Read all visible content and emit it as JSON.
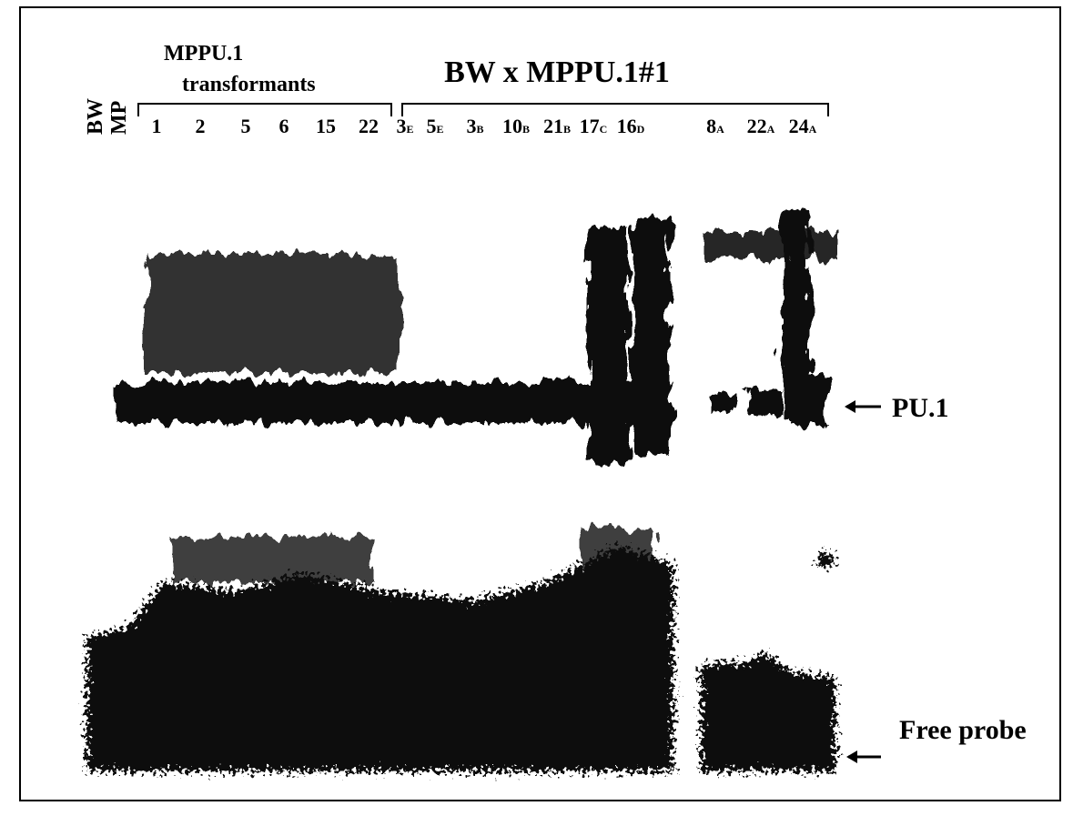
{
  "figure": {
    "group_left": {
      "title": "MPPU.1",
      "subtitle": "transformants"
    },
    "group_right": {
      "title": "BW x MPPU.1#1"
    },
    "controls": [
      "BW",
      "MP"
    ],
    "lanes": [
      {
        "label": "1"
      },
      {
        "label": "2"
      },
      {
        "label": "5"
      },
      {
        "label": "6"
      },
      {
        "label": "15"
      },
      {
        "label": "22"
      },
      {
        "label": "3",
        "sub": "E"
      },
      {
        "label": "5",
        "sub": "E"
      },
      {
        "label": "3",
        "sub": "B"
      },
      {
        "label": "10",
        "sub": "B"
      },
      {
        "label": "21",
        "sub": "B"
      },
      {
        "label": "17",
        "sub": "C"
      },
      {
        "label": "16",
        "sub": "D"
      },
      {
        "label": "8",
        "sub": "A"
      },
      {
        "label": "22",
        "sub": "A"
      },
      {
        "label": "24",
        "sub": "A"
      }
    ],
    "annotations": {
      "band": "PU.1",
      "free": "Free probe"
    }
  }
}
